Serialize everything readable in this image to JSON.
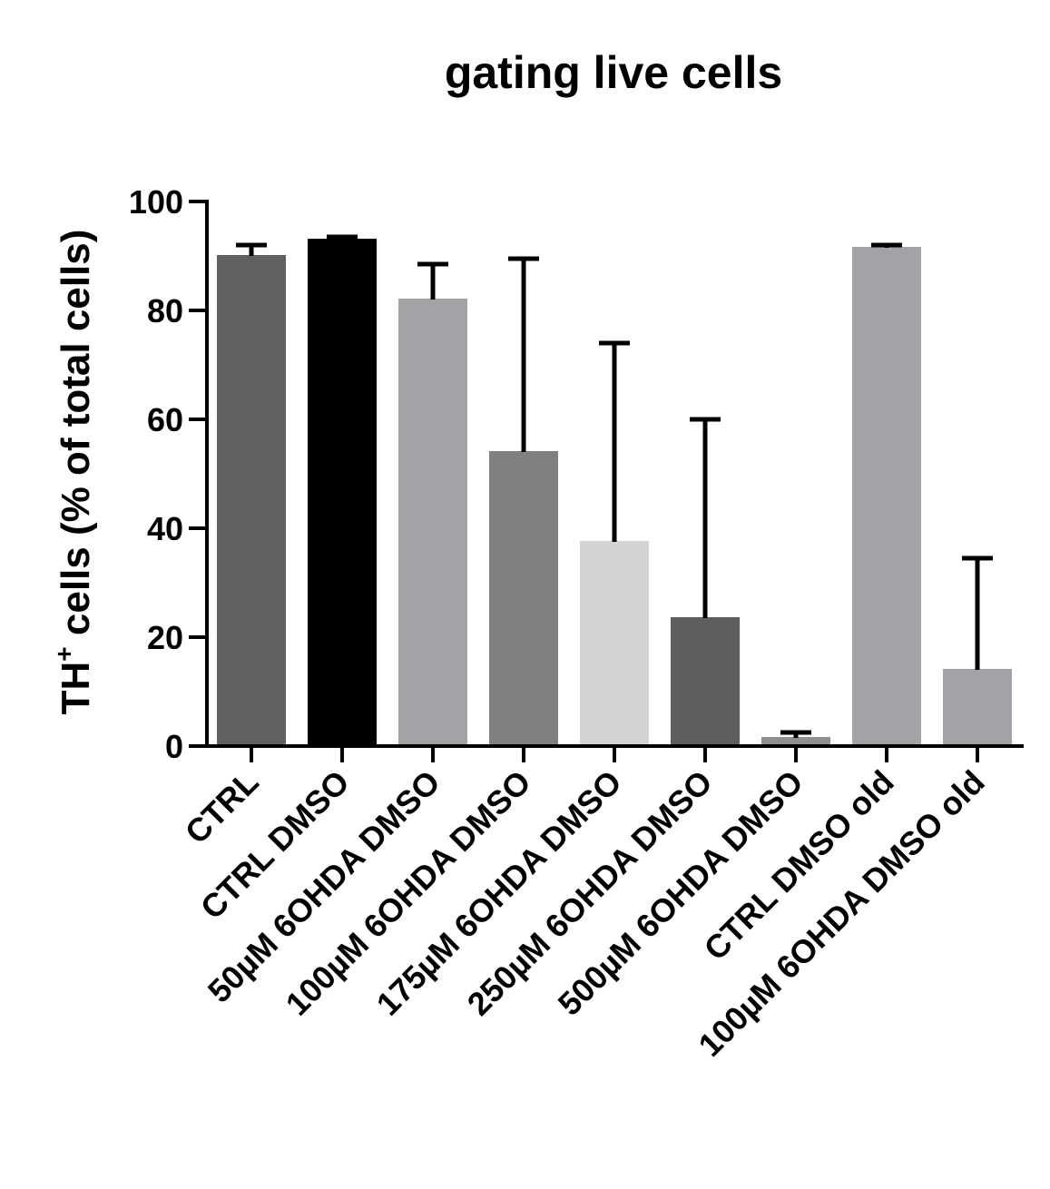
{
  "chart_data": {
    "type": "bar",
    "title": "gating live cells",
    "ylabel": {
      "prefix": "TH",
      "superscript": "+",
      "suffix": " cells (% of total cells)"
    },
    "xlabel": "",
    "ylim": [
      0,
      100
    ],
    "yticks": [
      0,
      20,
      40,
      60,
      80,
      100
    ],
    "categories": [
      "CTRL",
      "CTRL DMSO",
      "50µM 6OHDA DMSO",
      "100µM 6OHDA DMSO",
      "175µM 6OHDA DMSO",
      "250µM 6OHDA DMSO",
      "500µM 6OHDA DMSO",
      "CTRL DMSO old",
      "100µM 6OHDA DMSO old"
    ],
    "values": [
      90,
      93,
      82,
      54,
      37.5,
      23.5,
      1.5,
      91.5,
      14
    ],
    "error_upper": [
      2,
      0.5,
      6.5,
      35.5,
      36.5,
      36.5,
      1,
      0.5,
      20.5
    ],
    "colors": [
      "#606060",
      "#000000",
      "#a3a3a7",
      "#808080",
      "#d4d4d4",
      "#5e5e5e",
      "#909090",
      "#a3a3a7",
      "#a3a3a7"
    ]
  }
}
